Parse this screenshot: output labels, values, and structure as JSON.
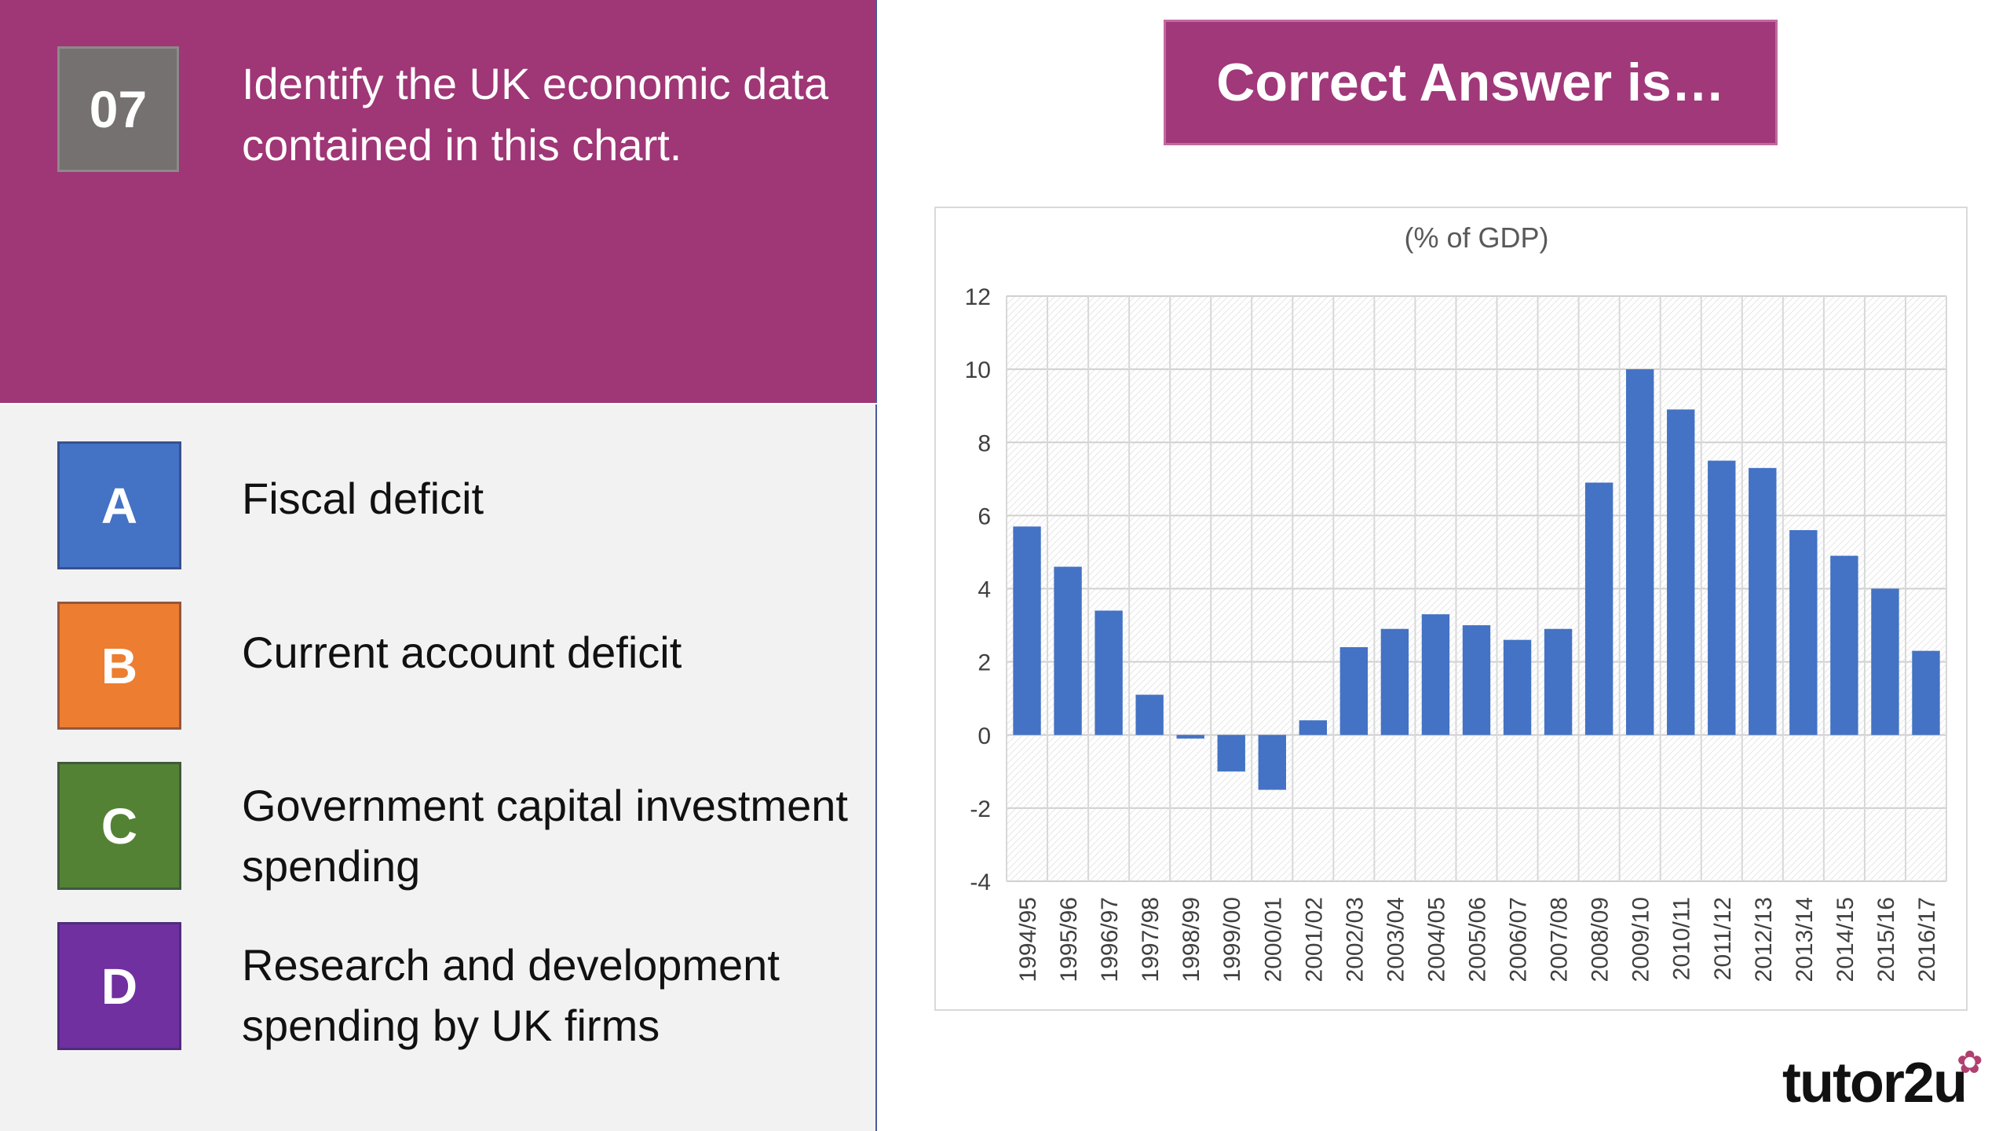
{
  "question": {
    "number": "07",
    "text": "Identify the UK economic data contained in this chart."
  },
  "options": [
    {
      "letter": "A",
      "text": "Fiscal deficit",
      "color": "#4472c4"
    },
    {
      "letter": "B",
      "text": "Current account deficit",
      "color": "#ed7d31"
    },
    {
      "letter": "C",
      "text": "Government capital investment spending",
      "color": "#548235"
    },
    {
      "letter": "D",
      "text": "Research and development spending by UK firms",
      "color": "#7030a0"
    }
  ],
  "answer_banner": "Correct Answer is…",
  "logo": {
    "text": "tutor2u",
    "icon": "flower-icon"
  },
  "colors": {
    "question_bg": "#9f3676",
    "banner_bg": "#a0387a",
    "bar": "#4472c4"
  },
  "chart_data": {
    "type": "bar",
    "title": "(% of GDP)",
    "xlabel": "",
    "ylabel": "",
    "categories": [
      "1994/95",
      "1995/96",
      "1996/97",
      "1997/98",
      "1998/99",
      "1999/00",
      "2000/01",
      "2001/02",
      "2002/03",
      "2003/04",
      "2004/05",
      "2005/06",
      "2006/07",
      "2007/08",
      "2008/09",
      "2009/10",
      "2010/11",
      "2011/12",
      "2012/13",
      "2013/14",
      "2014/15",
      "2015/16",
      "2016/17"
    ],
    "values": [
      5.7,
      4.6,
      3.4,
      1.1,
      -0.1,
      -1.0,
      -1.5,
      0.4,
      2.4,
      2.9,
      3.3,
      3.0,
      2.6,
      2.9,
      6.9,
      10.0,
      8.9,
      7.5,
      7.3,
      5.6,
      4.9,
      4.0,
      2.3
    ],
    "ylim": [
      -4,
      12
    ],
    "yticks": [
      12,
      10,
      8,
      6,
      4,
      2,
      0,
      -2,
      -4
    ],
    "grid": true,
    "legend": "none"
  }
}
